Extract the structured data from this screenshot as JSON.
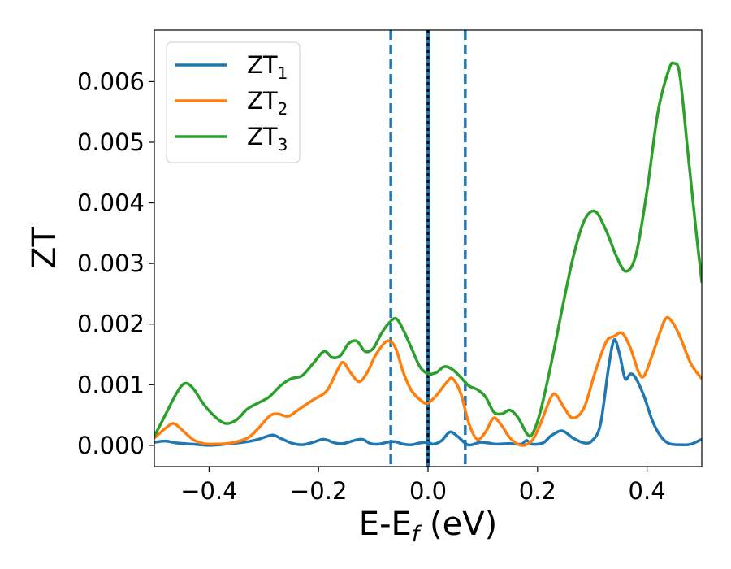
{
  "chart_data": {
    "type": "line",
    "xlabel": "E-E",
    "xlabel_sub": "f",
    "xlabel_unit": " (eV)",
    "ylabel": "ZT",
    "xlim": [
      -0.5,
      0.5
    ],
    "ylim": [
      -0.00035,
      0.00685
    ],
    "xticks": [
      -0.4,
      -0.2,
      0.0,
      0.2,
      0.4
    ],
    "xtick_labels": [
      "−0.4",
      "−0.2",
      "0.0",
      "0.2",
      "0.4"
    ],
    "yticks": [
      0.0,
      0.001,
      0.002,
      0.003,
      0.004,
      0.005,
      0.006
    ],
    "ytick_labels": [
      "0.000",
      "0.001",
      "0.002",
      "0.003",
      "0.004",
      "0.005",
      "0.006"
    ],
    "grid": false,
    "legend_position": "top-left",
    "vlines": [
      {
        "x": -0.068,
        "style": "dashed",
        "color": "#1f77b4"
      },
      {
        "x": 0.0,
        "style": "solid",
        "color": "#1f77b4"
      },
      {
        "x": 0.0,
        "style": "dotted",
        "color": "#000000"
      },
      {
        "x": 0.068,
        "style": "dashed",
        "color": "#1f77b4"
      }
    ],
    "series": [
      {
        "name": "ZT",
        "name_sub": "1",
        "color": "#1f77b4",
        "points": [
          [
            -0.5,
            5e-05
          ],
          [
            -0.48,
            7e-05
          ],
          [
            -0.46,
            4e-05
          ],
          [
            -0.43,
            2e-05
          ],
          [
            -0.4,
            0.0
          ],
          [
            -0.37,
            2e-05
          ],
          [
            -0.33,
            6e-05
          ],
          [
            -0.31,
            0.0001
          ],
          [
            -0.285,
            0.00017
          ],
          [
            -0.27,
            0.00012
          ],
          [
            -0.25,
            4e-05
          ],
          [
            -0.23,
            1e-05
          ],
          [
            -0.21,
            5e-05
          ],
          [
            -0.19,
            0.0001
          ],
          [
            -0.17,
            4e-05
          ],
          [
            -0.155,
            3e-05
          ],
          [
            -0.135,
            8e-05
          ],
          [
            -0.12,
            0.0001
          ],
          [
            -0.105,
            3e-05
          ],
          [
            -0.09,
            2e-05
          ],
          [
            -0.075,
            5e-05
          ],
          [
            -0.06,
            6e-05
          ],
          [
            -0.045,
            2e-05
          ],
          [
            -0.03,
            1e-05
          ],
          [
            -0.015,
            4e-05
          ],
          [
            0.0,
            5e-05
          ],
          [
            0.01,
            2e-05
          ],
          [
            0.025,
            8e-05
          ],
          [
            0.04,
            0.00022
          ],
          [
            0.055,
            0.00014
          ],
          [
            0.07,
            2e-05
          ],
          [
            0.08,
            1e-05
          ],
          [
            0.095,
            5e-05
          ],
          [
            0.11,
            4e-05
          ],
          [
            0.125,
            2e-05
          ],
          [
            0.15,
            3e-05
          ],
          [
            0.17,
            2e-05
          ],
          [
            0.18,
            8e-05
          ],
          [
            0.19,
            2e-05
          ],
          [
            0.21,
            4e-05
          ],
          [
            0.225,
            0.00016
          ],
          [
            0.245,
            0.00024
          ],
          [
            0.265,
            0.00012
          ],
          [
            0.285,
            4e-05
          ],
          [
            0.3,
            8e-05
          ],
          [
            0.315,
            0.00035
          ],
          [
            0.33,
            0.0013
          ],
          [
            0.34,
            0.00174
          ],
          [
            0.35,
            0.0015
          ],
          [
            0.36,
            0.0011
          ],
          [
            0.37,
            0.00118
          ],
          [
            0.38,
            0.0011
          ],
          [
            0.395,
            0.0008
          ],
          [
            0.41,
            0.0004
          ],
          [
            0.425,
            0.00015
          ],
          [
            0.44,
            3e-05
          ],
          [
            0.46,
            1e-05
          ],
          [
            0.48,
            2e-05
          ],
          [
            0.5,
            0.0001
          ]
        ]
      },
      {
        "name": "ZT",
        "name_sub": "2",
        "color": "#ff7f0e",
        "points": [
          [
            -0.5,
            0.00012
          ],
          [
            -0.48,
            0.00028
          ],
          [
            -0.465,
            0.00036
          ],
          [
            -0.45,
            0.00026
          ],
          [
            -0.43,
            0.0001
          ],
          [
            -0.41,
            3e-05
          ],
          [
            -0.39,
            2e-05
          ],
          [
            -0.36,
            4e-05
          ],
          [
            -0.33,
            0.00012
          ],
          [
            -0.31,
            0.00028
          ],
          [
            -0.29,
            0.00048
          ],
          [
            -0.275,
            0.00052
          ],
          [
            -0.255,
            0.00048
          ],
          [
            -0.235,
            0.0006
          ],
          [
            -0.21,
            0.00075
          ],
          [
            -0.185,
            0.0009
          ],
          [
            -0.165,
            0.00125
          ],
          [
            -0.155,
            0.00137
          ],
          [
            -0.14,
            0.00118
          ],
          [
            -0.125,
            0.00105
          ],
          [
            -0.11,
            0.00122
          ],
          [
            -0.095,
            0.0015
          ],
          [
            -0.075,
            0.00172
          ],
          [
            -0.06,
            0.00162
          ],
          [
            -0.045,
            0.0012
          ],
          [
            -0.03,
            0.0009
          ],
          [
            -0.01,
            0.00072
          ],
          [
            0.0,
            0.0007
          ],
          [
            0.015,
            0.00082
          ],
          [
            0.035,
            0.00105
          ],
          [
            0.045,
            0.0011
          ],
          [
            0.06,
            0.00085
          ],
          [
            0.075,
            0.00035
          ],
          [
            0.09,
            0.0001
          ],
          [
            0.105,
            0.00022
          ],
          [
            0.12,
            0.00045
          ],
          [
            0.135,
            0.00032
          ],
          [
            0.15,
            0.00012
          ],
          [
            0.17,
            0.0
          ],
          [
            0.19,
            8e-05
          ],
          [
            0.205,
            0.00035
          ],
          [
            0.225,
            0.0008
          ],
          [
            0.235,
            0.00082
          ],
          [
            0.25,
            0.0006
          ],
          [
            0.265,
            0.00045
          ],
          [
            0.285,
            0.00062
          ],
          [
            0.305,
            0.0012
          ],
          [
            0.325,
            0.0017
          ],
          [
            0.34,
            0.0018
          ],
          [
            0.355,
            0.00185
          ],
          [
            0.37,
            0.0016
          ],
          [
            0.385,
            0.0012
          ],
          [
            0.395,
            0.00115
          ],
          [
            0.41,
            0.0015
          ],
          [
            0.425,
            0.0019
          ],
          [
            0.435,
            0.0021
          ],
          [
            0.445,
            0.00205
          ],
          [
            0.46,
            0.0018
          ],
          [
            0.48,
            0.00135
          ],
          [
            0.5,
            0.0011
          ]
        ]
      },
      {
        "name": "ZT",
        "name_sub": "3",
        "color": "#2ca02c",
        "points": [
          [
            -0.5,
            0.00015
          ],
          [
            -0.48,
            0.0005
          ],
          [
            -0.46,
            0.00085
          ],
          [
            -0.445,
            0.00102
          ],
          [
            -0.43,
            0.00095
          ],
          [
            -0.41,
            0.00068
          ],
          [
            -0.39,
            0.00048
          ],
          [
            -0.37,
            0.00036
          ],
          [
            -0.35,
            0.00042
          ],
          [
            -0.33,
            0.0006
          ],
          [
            -0.31,
            0.0007
          ],
          [
            -0.29,
            0.0008
          ],
          [
            -0.27,
            0.00098
          ],
          [
            -0.25,
            0.0011
          ],
          [
            -0.23,
            0.00115
          ],
          [
            -0.21,
            0.00135
          ],
          [
            -0.19,
            0.00155
          ],
          [
            -0.175,
            0.00145
          ],
          [
            -0.16,
            0.00148
          ],
          [
            -0.145,
            0.00168
          ],
          [
            -0.13,
            0.00172
          ],
          [
            -0.115,
            0.00155
          ],
          [
            -0.1,
            0.0016
          ],
          [
            -0.085,
            0.00185
          ],
          [
            -0.07,
            0.00203
          ],
          [
            -0.058,
            0.00209
          ],
          [
            -0.045,
            0.0019
          ],
          [
            -0.03,
            0.0016
          ],
          [
            -0.015,
            0.0013
          ],
          [
            0.0,
            0.00118
          ],
          [
            0.015,
            0.0012
          ],
          [
            0.03,
            0.0013
          ],
          [
            0.045,
            0.00125
          ],
          [
            0.06,
            0.00112
          ],
          [
            0.075,
            0.00098
          ],
          [
            0.09,
            0.00092
          ],
          [
            0.105,
            0.0008
          ],
          [
            0.12,
            0.00055
          ],
          [
            0.135,
            0.00052
          ],
          [
            0.15,
            0.00058
          ],
          [
            0.165,
            0.00045
          ],
          [
            0.18,
            0.0002
          ],
          [
            0.19,
            0.00018
          ],
          [
            0.205,
            0.00055
          ],
          [
            0.225,
            0.00135
          ],
          [
            0.245,
            0.00225
          ],
          [
            0.265,
            0.0031
          ],
          [
            0.285,
            0.0037
          ],
          [
            0.305,
            0.00386
          ],
          [
            0.325,
            0.00355
          ],
          [
            0.345,
            0.0031
          ],
          [
            0.362,
            0.00287
          ],
          [
            0.38,
            0.00315
          ],
          [
            0.4,
            0.0042
          ],
          [
            0.42,
            0.0055
          ],
          [
            0.44,
            0.0062
          ],
          [
            0.45,
            0.0063
          ],
          [
            0.46,
            0.0061
          ],
          [
            0.475,
            0.0048
          ],
          [
            0.49,
            0.0035
          ],
          [
            0.5,
            0.0027
          ]
        ]
      }
    ]
  }
}
